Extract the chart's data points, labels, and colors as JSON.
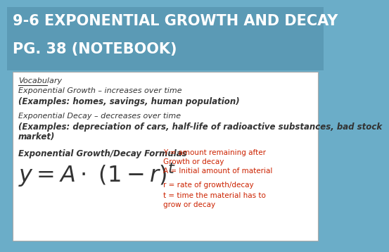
{
  "title_line1": "9-6 EXPONENTIAL GROWTH AND DECAY",
  "title_line2": "PG. 38 (NOTEBOOK)",
  "title_color": "#FFFFFF",
  "title_bg_color": "#5B9AB5",
  "content_bg_color": "#FFFFFF",
  "border_color": "#AAAAAA",
  "vocab_label": "Vocabulary",
  "line1": "Exponential Growth – increases over time",
  "line2": "(Examples: homes, savings, human population)",
  "line3": "Exponential Decay – decreases over time",
  "line4a": "(Examples: depreciation of cars, half-life of radioactive substances, bad stock",
  "line4b": "market)",
  "formula_label": "Exponential Growth/Decay Formulas",
  "def1": "Y = amount remaining after\nGrowth or decay",
  "def2": "A = Initial amount of material",
  "def3": "r = rate of growth/decay",
  "def4": "t = time the material has to\ngrow or decay",
  "red_color": "#CC2200",
  "text_color": "#333333",
  "outer_bg": "#6BADC8"
}
